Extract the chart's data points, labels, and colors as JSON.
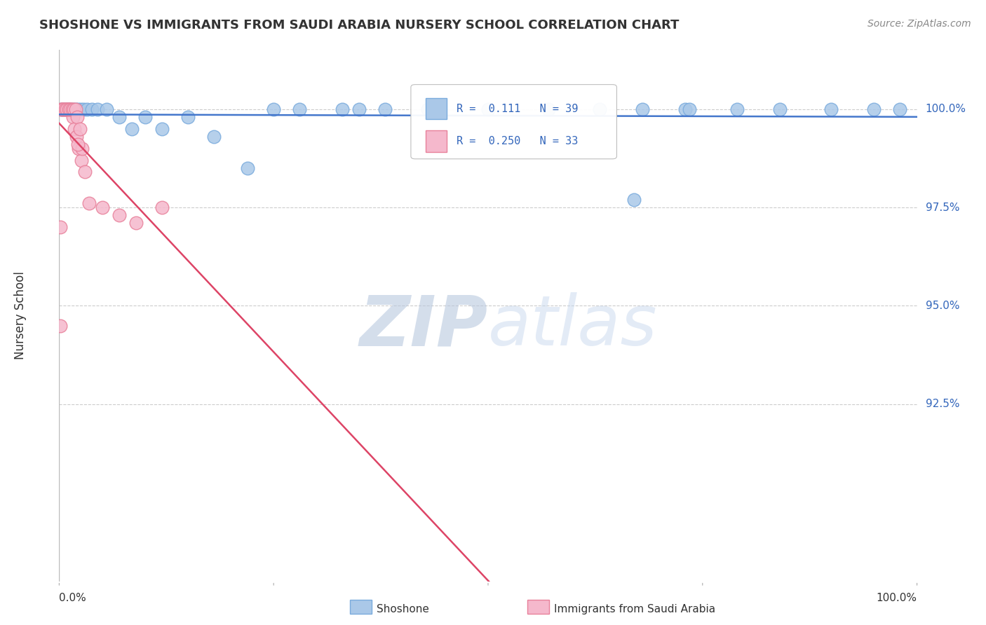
{
  "title": "SHOSHONE VS IMMIGRANTS FROM SAUDI ARABIA NURSERY SCHOOL CORRELATION CHART",
  "source_text": "Source: ZipAtlas.com",
  "ylabel": "Nursery School",
  "ytick_labels": [
    "100.0%",
    "97.5%",
    "95.0%",
    "92.5%"
  ],
  "ytick_values": [
    100.0,
    97.5,
    95.0,
    92.5
  ],
  "xlim": [
    0.0,
    100.0
  ],
  "ylim": [
    88.0,
    101.5
  ],
  "shoshone_color": "#aac8e8",
  "shoshone_edge_color": "#7aabdd",
  "saudi_color": "#f5b8cc",
  "saudi_edge_color": "#e8809a",
  "trend_shoshone_color": "#4477cc",
  "trend_saudi_color": "#dd4466",
  "watermark_color": "#d0dff0",
  "background_color": "#ffffff",
  "grid_color": "#cccccc",
  "shoshone_x": [
    0.2,
    0.5,
    0.8,
    1.0,
    1.3,
    1.6,
    1.9,
    2.2,
    2.5,
    2.8,
    3.2,
    3.8,
    4.5,
    5.5,
    7.0,
    8.5,
    10.0,
    12.0,
    15.0,
    18.0,
    22.0,
    28.0,
    33.0,
    38.0,
    43.0,
    50.0,
    57.0,
    63.0,
    68.0,
    73.0,
    79.0,
    84.0,
    90.0,
    95.0,
    98.0,
    67.0,
    73.5,
    25.0,
    35.0
  ],
  "shoshone_y": [
    100.0,
    100.0,
    100.0,
    100.0,
    100.0,
    100.0,
    100.0,
    100.0,
    100.0,
    100.0,
    100.0,
    100.0,
    100.0,
    100.0,
    99.8,
    99.5,
    99.8,
    99.5,
    99.8,
    99.3,
    98.5,
    100.0,
    100.0,
    100.0,
    100.0,
    100.0,
    100.0,
    100.0,
    100.0,
    100.0,
    100.0,
    100.0,
    100.0,
    100.0,
    100.0,
    97.7,
    100.0,
    100.0,
    100.0
  ],
  "saudi_x": [
    0.2,
    0.4,
    0.6,
    0.8,
    1.0,
    1.2,
    1.4,
    1.6,
    1.8,
    2.0,
    2.3,
    2.6,
    3.0,
    0.3,
    0.5,
    0.7,
    0.9,
    1.1,
    1.3,
    1.5,
    1.7,
    1.9,
    2.1,
    2.4,
    2.7,
    3.5,
    5.0,
    7.0,
    9.0,
    12.0,
    2.2,
    0.1,
    0.15
  ],
  "saudi_y": [
    100.0,
    100.0,
    100.0,
    100.0,
    100.0,
    100.0,
    100.0,
    99.8,
    99.5,
    99.3,
    99.0,
    98.7,
    98.4,
    100.0,
    100.0,
    100.0,
    100.0,
    100.0,
    100.0,
    100.0,
    100.0,
    100.0,
    99.8,
    99.5,
    99.0,
    97.6,
    97.5,
    97.3,
    97.1,
    97.5,
    99.1,
    94.5,
    97.0
  ]
}
